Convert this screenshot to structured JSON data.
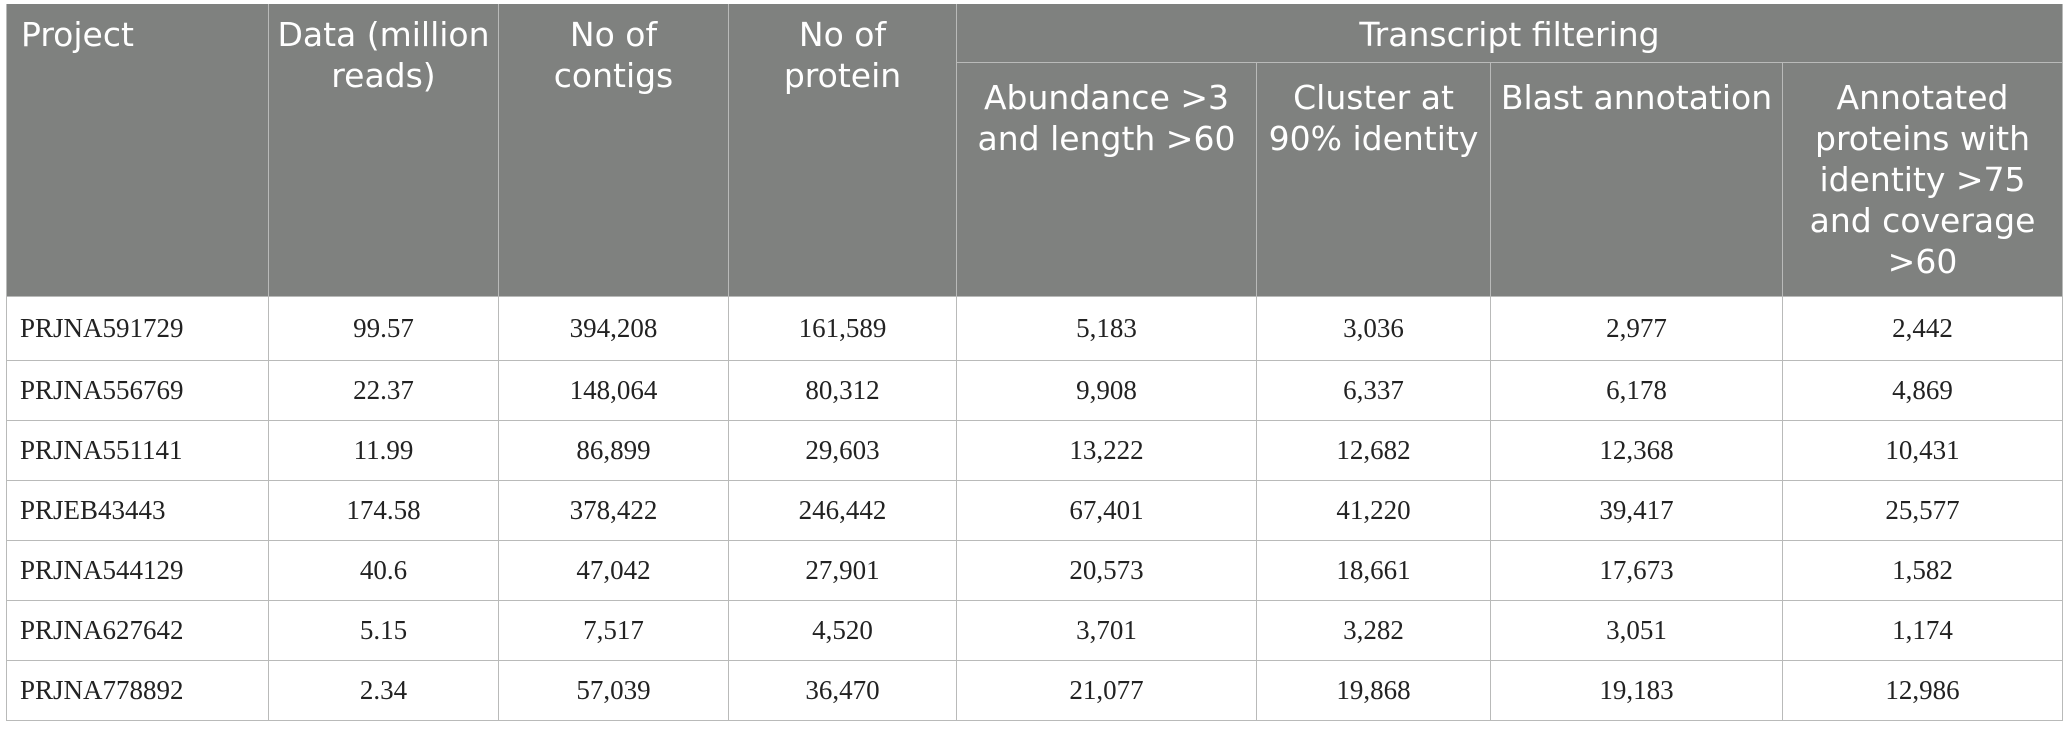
{
  "table": {
    "headers": {
      "project": "Project",
      "data": "Data (million reads)",
      "contigs": "No of contigs",
      "protein": "No of protein",
      "group": "Transcript filtering",
      "sub": [
        "Abundance >3 and length >60",
        "Cluster at 90% identity",
        "Blast annotation",
        "Annotated proteins with identity >75 and coverage >60"
      ]
    },
    "rows": [
      {
        "project": "PRJNA591729",
        "data": "99.57",
        "contigs": "394,208",
        "protein": "161,589",
        "abundance": "5,183",
        "cluster": "3,036",
        "blast": "2,977",
        "annotated": "2,442"
      },
      {
        "project": "PRJNA556769",
        "data": "22.37",
        "contigs": "148,064",
        "protein": "80,312",
        "abundance": "9,908",
        "cluster": "6,337",
        "blast": "6,178",
        "annotated": "4,869"
      },
      {
        "project": "PRJNA551141",
        "data": "11.99",
        "contigs": "86,899",
        "protein": "29,603",
        "abundance": "13,222",
        "cluster": "12,682",
        "blast": "12,368",
        "annotated": "10,431"
      },
      {
        "project": "PRJEB43443",
        "data": "174.58",
        "contigs": "378,422",
        "protein": "246,442",
        "abundance": "67,401",
        "cluster": "41,220",
        "blast": "39,417",
        "annotated": "25,577"
      },
      {
        "project": "PRJNA544129",
        "data": "40.6",
        "contigs": "47,042",
        "protein": "27,901",
        "abundance": "20,573",
        "cluster": "18,661",
        "blast": "17,673",
        "annotated": "1,582"
      },
      {
        "project": "PRJNA627642",
        "data": "5.15",
        "contigs": "7,517",
        "protein": "4,520",
        "abundance": "3,701",
        "cluster": "3,282",
        "blast": "3,051",
        "annotated": "1,174"
      },
      {
        "project": "PRJNA778892",
        "data": "2.34",
        "contigs": "57,039",
        "protein": "36,470",
        "abundance": "21,077",
        "cluster": "19,868",
        "blast": "19,183",
        "annotated": "12,986"
      }
    ]
  },
  "colors": {
    "header_bg": "#7f817f",
    "header_text": "#ffffff",
    "grid": "#b9bab9"
  }
}
